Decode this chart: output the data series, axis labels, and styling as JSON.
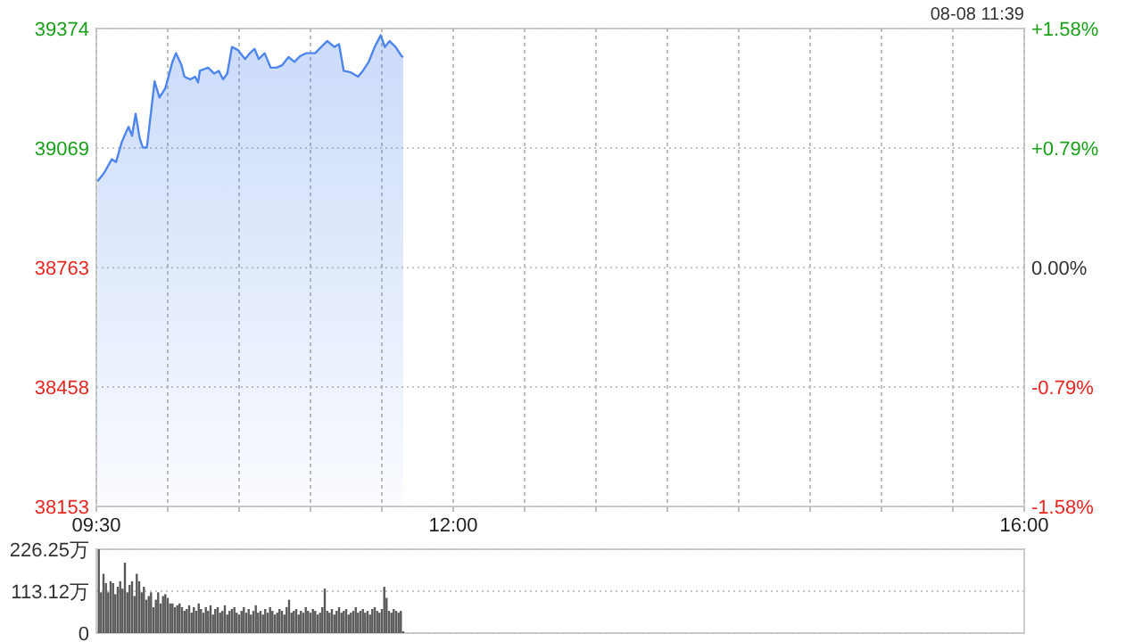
{
  "chart_data": [
    {
      "type": "area",
      "annotations": [
        "08-08 11:39"
      ],
      "grid": true,
      "xlim": [
        9.5,
        16
      ],
      "xticks": [
        {
          "value": 9.5,
          "label": "09:30"
        },
        {
          "value": 10,
          "label": null
        },
        {
          "value": 10.5,
          "label": null
        },
        {
          "value": 11,
          "label": null
        },
        {
          "value": 11.5,
          "label": null
        },
        {
          "value": 12,
          "label": "12:00"
        },
        {
          "value": 12.5,
          "label": null
        },
        {
          "value": 13,
          "label": null
        },
        {
          "value": 13.5,
          "label": null
        },
        {
          "value": 14,
          "label": null
        },
        {
          "value": 14.5,
          "label": null
        },
        {
          "value": 15,
          "label": null
        },
        {
          "value": 15.5,
          "label": null
        },
        {
          "value": 16,
          "label": "16:00"
        }
      ],
      "ylim": [
        38153,
        39374
      ],
      "yticks": [
        38153,
        38458,
        38763,
        39069,
        39374
      ],
      "y2lim": [
        -1.58,
        1.58
      ],
      "y2ticks": [
        {
          "value": -1.58,
          "label": "-1.58%"
        },
        {
          "value": -0.79,
          "label": "-0.79%"
        },
        {
          "value": 0,
          "label": "0.00%"
        },
        {
          "value": 0.79,
          "label": "+0.79%"
        },
        {
          "value": 1.58,
          "label": "+1.58%"
        }
      ],
      "series": [
        {
          "color": "#4f86ec",
          "x": [
            9.508,
            9.554,
            9.608,
            9.638,
            9.679,
            9.725,
            9.75,
            9.775,
            9.804,
            9.825,
            9.854,
            9.908,
            9.942,
            9.983,
            10.033,
            10.058,
            10.096,
            10.117,
            10.158,
            10.192,
            10.2125,
            10.225,
            10.283,
            10.325,
            10.358,
            10.3875,
            10.417,
            10.45,
            10.492,
            10.542,
            10.575,
            10.608,
            10.6375,
            10.679,
            10.721,
            10.7625,
            10.804,
            10.846,
            10.8875,
            10.929,
            10.971,
            11.033,
            11.075,
            11.117,
            11.167,
            11.2,
            11.233,
            11.283,
            11.333,
            11.367,
            11.408,
            11.45,
            11.492,
            11.521,
            11.554,
            11.596,
            11.6375,
            11.65
          ],
          "values": [
            38984,
            39005,
            39040,
            39033,
            39085,
            39123,
            39100,
            39156,
            39093,
            39070,
            39070,
            39239,
            39198,
            39221,
            39289,
            39311,
            39281,
            39251,
            39244,
            39251,
            39236,
            39266,
            39274,
            39259,
            39266,
            39244,
            39259,
            39327,
            39319,
            39296,
            39311,
            39322,
            39296,
            39311,
            39274,
            39274,
            39281,
            39301,
            39289,
            39304,
            39311,
            39311,
            39327,
            39342,
            39327,
            39334,
            39266,
            39262,
            39251,
            39266,
            39289,
            39327,
            39357,
            39327,
            39342,
            39327,
            39304,
            39301
          ]
        }
      ]
    },
    {
      "type": "bar",
      "grid": "y",
      "tick_labels": "y",
      "color": "#5a5a5a",
      "xlim": [
        9.5,
        16
      ],
      "ylim": [
        0,
        226.25
      ],
      "yticks": [
        0,
        {
          "value": 113.12,
          "label": "113.12万"
        },
        {
          "value": 226.25,
          "label": "226.25万"
        }
      ],
      "x": [
        9.517,
        9.533,
        9.55,
        9.567,
        9.583,
        9.6,
        9.617,
        9.633,
        9.65,
        9.667,
        9.683,
        9.7,
        9.717,
        9.733,
        9.75,
        9.767,
        9.783,
        9.8,
        9.817,
        9.833,
        9.85,
        9.867,
        9.883,
        9.9,
        9.917,
        9.933,
        9.95,
        9.967,
        9.983,
        10.0,
        10.017,
        10.033,
        10.05,
        10.067,
        10.083,
        10.1,
        10.117,
        10.133,
        10.15,
        10.167,
        10.183,
        10.2,
        10.217,
        10.233,
        10.25,
        10.267,
        10.283,
        10.3,
        10.317,
        10.333,
        10.35,
        10.367,
        10.383,
        10.4,
        10.417,
        10.433,
        10.45,
        10.467,
        10.483,
        10.5,
        10.517,
        10.533,
        10.55,
        10.567,
        10.583,
        10.6,
        10.617,
        10.633,
        10.65,
        10.667,
        10.683,
        10.7,
        10.717,
        10.733,
        10.75,
        10.767,
        10.783,
        10.8,
        10.817,
        10.833,
        10.85,
        10.867,
        10.883,
        10.9,
        10.917,
        10.933,
        10.95,
        10.967,
        10.983,
        11.0,
        11.017,
        11.033,
        11.05,
        11.067,
        11.083,
        11.1,
        11.117,
        11.133,
        11.15,
        11.167,
        11.183,
        11.2,
        11.217,
        11.233,
        11.25,
        11.267,
        11.283,
        11.3,
        11.317,
        11.333,
        11.35,
        11.367,
        11.383,
        11.4,
        11.417,
        11.433,
        11.45,
        11.467,
        11.483,
        11.5,
        11.517,
        11.533,
        11.55,
        11.567,
        11.583,
        11.6,
        11.617,
        11.633,
        11.65
      ],
      "values": [
        226,
        110,
        160,
        135,
        110,
        140,
        135,
        105,
        125,
        140,
        120,
        190,
        110,
        130,
        140,
        100,
        160,
        140,
        110,
        125,
        90,
        100,
        110,
        70,
        90,
        110,
        80,
        100,
        105,
        95,
        80,
        80,
        70,
        75,
        80,
        70,
        60,
        65,
        75,
        55,
        70,
        60,
        80,
        65,
        55,
        70,
        60,
        75,
        50,
        65,
        70,
        55,
        60,
        75,
        50,
        60,
        65,
        70,
        55,
        50,
        60,
        70,
        55,
        65,
        50,
        60,
        75,
        55,
        60,
        50,
        65,
        55,
        70,
        60,
        50,
        55,
        65,
        60,
        50,
        70,
        90,
        55,
        60,
        65,
        50,
        60,
        55,
        70,
        60,
        55,
        65,
        60,
        50,
        55,
        70,
        120,
        60,
        55,
        65,
        50,
        60,
        70,
        55,
        60,
        65,
        50,
        55,
        60,
        70,
        55,
        60,
        65,
        55,
        60,
        50,
        65,
        70,
        60,
        55,
        65,
        125,
        95,
        60,
        55,
        65,
        60,
        55,
        60,
        5
      ]
    }
  ]
}
